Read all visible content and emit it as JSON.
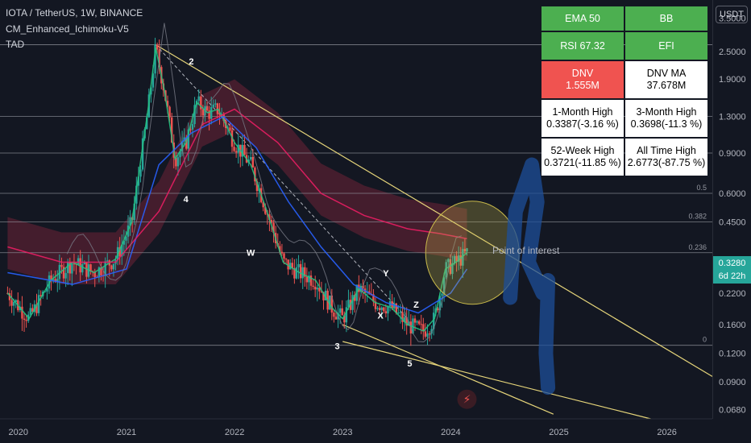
{
  "header": {
    "symbol": "IOTA / TetherUS, 1W, BINANCE",
    "indicator_1": "CM_Enhanced_Ichimoku-V5",
    "indicator_2": "TAD"
  },
  "currency_button": "USDT",
  "stats_table": {
    "r1": [
      "EMA 50",
      "BB"
    ],
    "r2": [
      "RSI 67.32",
      "EFI"
    ],
    "r3": [
      [
        "DNV",
        "1.555M"
      ],
      [
        "DNV MA",
        "37.678M"
      ]
    ],
    "r4": [
      [
        "1-Month High",
        "0.3387(-3.16 %)"
      ],
      [
        "3-Month High",
        "0.3698(-11.3 %)"
      ]
    ],
    "r5": [
      [
        "52-Week High",
        "0.3721(-11.85 %)"
      ],
      [
        "All Time High",
        "2.6773(-87.75 %)"
      ]
    ]
  },
  "current_price": {
    "value": "0.3280",
    "countdown": "6d 22h"
  },
  "annotation": "Point of interest",
  "wave_labels": [
    "2",
    "4",
    "3",
    "5",
    "W",
    "X",
    "Y",
    "Z"
  ],
  "fib_labels": [
    "0.5",
    "0.382",
    "0.236",
    "0"
  ],
  "colors": {
    "background": "#131722",
    "up": "#26a69a",
    "down": "#ef5350",
    "trendline": "#e6d57a",
    "ema": "#e91e63",
    "table_green": "#4caf50",
    "table_red": "#f05350",
    "cloud": "#6d2236",
    "blue_draw": "#1e4f9a"
  },
  "chart_data": {
    "type": "line",
    "title": "IOTA / TetherUS, 1W, BINANCE",
    "xlabel": "",
    "ylabel": "",
    "y_scale": "log",
    "y_ticks": [
      3.5,
      2.5,
      1.9,
      1.3,
      0.9,
      0.6,
      0.45,
      0.22,
      0.16,
      0.12,
      0.09,
      0.068
    ],
    "y_tick_labels": [
      "3.5000",
      "2.5000",
      "1.9000",
      "1.3000",
      "0.9000",
      "0.6000",
      "0.4500",
      "0.2200",
      "0.1600",
      "0.1200",
      "0.0900",
      "0.0680"
    ],
    "x_ticks": [
      2020,
      2021,
      2022,
      2023,
      2024,
      2025,
      2026
    ],
    "x_tick_labels": [
      "2020",
      "2021",
      "2022",
      "2023",
      "2024",
      "2025",
      "2026"
    ],
    "ylim": [
      0.062,
      4.2
    ],
    "xlim": [
      2019.83,
      2026.42
    ],
    "horizontal_levels": [
      2.6773,
      1.3,
      0.9,
      0.6,
      0.45,
      0.33,
      0.13
    ],
    "series": [
      {
        "x": [
          2019.9,
          2020.1,
          2020.3,
          2020.5,
          2020.7,
          2020.9,
          2021.05,
          2021.2,
          2021.27,
          2021.35,
          2021.45,
          2021.55,
          2021.65,
          2021.75,
          2021.85,
          2022.0,
          2022.15,
          2022.3,
          2022.45,
          2022.6,
          2022.75,
          2022.9,
          2023.0,
          2023.15,
          2023.3,
          2023.45,
          2023.6,
          2023.75,
          2023.85,
          2023.95,
          2024.05,
          2024.15
        ],
        "values": [
          0.22,
          0.17,
          0.25,
          0.3,
          0.27,
          0.31,
          0.45,
          1.4,
          2.6,
          1.7,
          0.85,
          1.0,
          1.5,
          1.35,
          1.4,
          1.0,
          0.8,
          0.5,
          0.3,
          0.27,
          0.25,
          0.19,
          0.17,
          0.23,
          0.2,
          0.19,
          0.16,
          0.15,
          0.17,
          0.28,
          0.3,
          0.33
        ]
      },
      {
        "x": [
          2019.9,
          2020.5,
          2021.0,
          2021.3,
          2021.6,
          2021.9,
          2022.2,
          2022.5,
          2022.8,
          2023.1,
          2023.4,
          2023.7,
          2024.0,
          2024.15
        ],
        "values": [
          0.27,
          0.24,
          0.28,
          0.8,
          1.1,
          1.3,
          0.95,
          0.55,
          0.35,
          0.24,
          0.2,
          0.18,
          0.22,
          0.28
        ]
      },
      {
        "x": [
          2019.9,
          2020.4,
          2020.9,
          2021.3,
          2021.7,
          2022.0,
          2022.4,
          2022.8,
          2023.2,
          2023.6,
          2023.9,
          2024.15
        ],
        "values": [
          0.35,
          0.3,
          0.3,
          0.5,
          1.2,
          1.4,
          1.0,
          0.6,
          0.48,
          0.42,
          0.4,
          0.38
        ]
      }
    ]
  }
}
